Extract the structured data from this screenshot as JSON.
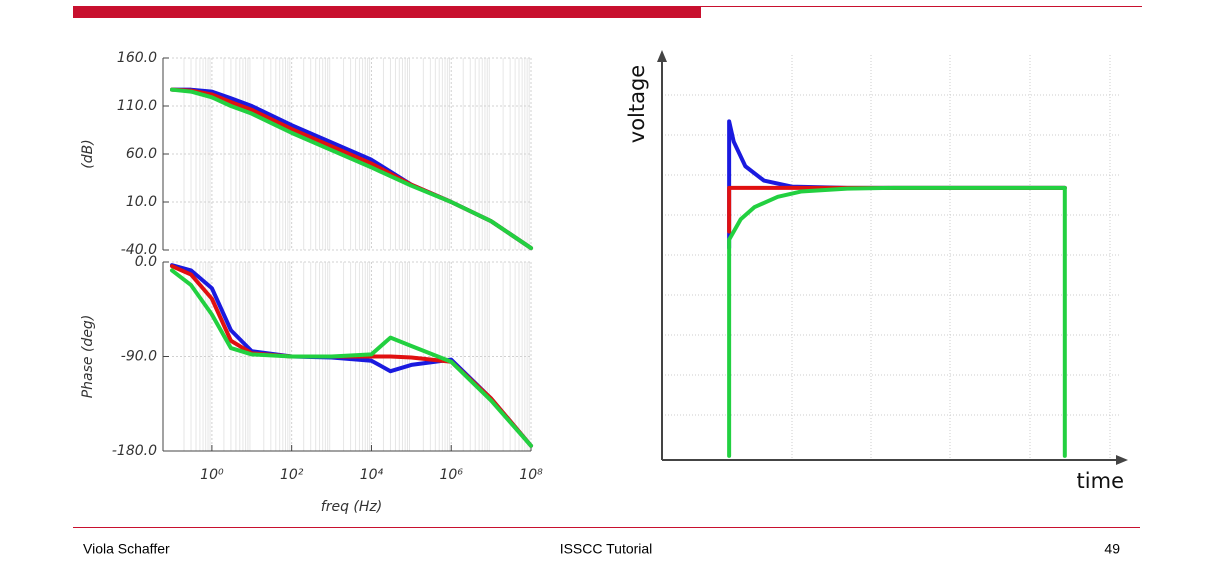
{
  "footer": {
    "author": "Viola Schaffer",
    "event": "ISSCC Tutorial",
    "page": "49"
  },
  "chart_data": [
    {
      "type": "line",
      "ylabel": "(dB)",
      "xscale": "log",
      "xlim": [
        0.1,
        100000000
      ],
      "ylim": [
        -40,
        160
      ],
      "yticks": [
        {
          "value": 160,
          "label": "160.0"
        },
        {
          "value": 110,
          "label": "110.0"
        },
        {
          "value": 60,
          "label": "60.0"
        },
        {
          "value": 10,
          "label": "10.0"
        },
        {
          "value": -40,
          "label": "-40.0"
        }
      ],
      "grid": true,
      "x": [
        0.1,
        0.3,
        1,
        3,
        10,
        100,
        1000,
        10000,
        100000,
        1000000,
        10000000,
        100000000
      ],
      "series": [
        {
          "color": "#1a1adf",
          "values": [
            127,
            127,
            125,
            118,
            110,
            90,
            72,
            54,
            28,
            10,
            -10,
            -38
          ]
        },
        {
          "color": "#e01010",
          "values": [
            127,
            126,
            122,
            114,
            106,
            86,
            68,
            50,
            28,
            10,
            -10,
            -38
          ]
        },
        {
          "color": "#22d040",
          "values": [
            127,
            125,
            119,
            110,
            102,
            82,
            64,
            46,
            27,
            10,
            -10,
            -38
          ]
        }
      ]
    },
    {
      "type": "line",
      "ylabel": "Phase (deg)",
      "xlabel": "freq (Hz)",
      "xscale": "log",
      "xlim": [
        0.1,
        100000000
      ],
      "ylim": [
        -180,
        0
      ],
      "yticks": [
        {
          "value": 0,
          "label": "0.0"
        },
        {
          "value": -90,
          "label": "-90.0"
        },
        {
          "value": -180,
          "label": "-180.0"
        }
      ],
      "xticks": [
        {
          "value": 1,
          "label": "10⁰"
        },
        {
          "value": 100,
          "label": "10²"
        },
        {
          "value": 10000,
          "label": "10⁴"
        },
        {
          "value": 1000000,
          "label": "10⁶"
        },
        {
          "value": 100000000,
          "label": "10⁸"
        }
      ],
      "grid": true,
      "x": [
        0.1,
        0.3,
        1,
        3,
        10,
        100,
        1000,
        10000,
        30000,
        100000,
        1000000,
        10000000,
        100000000
      ],
      "series": [
        {
          "color": "#1a1adf",
          "values": [
            -3,
            -8,
            -25,
            -65,
            -85,
            -90,
            -91,
            -94,
            -104,
            -98,
            -93,
            -130,
            -175
          ]
        },
        {
          "color": "#e01010",
          "values": [
            -4,
            -12,
            -35,
            -75,
            -87,
            -90,
            -90,
            -90,
            -90,
            -91,
            -95,
            -130,
            -175
          ]
        },
        {
          "color": "#22d040",
          "values": [
            -8,
            -22,
            -50,
            -82,
            -88,
            -90,
            -90,
            -88,
            -72,
            -80,
            -95,
            -132,
            -175
          ]
        }
      ]
    },
    {
      "type": "line",
      "ylabel": "voltage",
      "xlabel": "time",
      "xlim": [
        0,
        10
      ],
      "ylim": [
        0,
        10
      ],
      "series": [
        {
          "color": "#1a1adf",
          "x": [
            1.45,
            1.45,
            1.55,
            1.8,
            2.2,
            2.8,
            4,
            8.7
          ],
          "values": [
            5.2,
            8.3,
            7.8,
            7.2,
            6.85,
            6.7,
            6.67,
            6.67
          ]
        },
        {
          "color": "#e01010",
          "x": [
            1.45,
            1.45,
            8.7
          ],
          "values": [
            5.6,
            6.67,
            6.67
          ]
        },
        {
          "color": "#22d040",
          "x": [
            1.45,
            1.45,
            1.7,
            2,
            2.5,
            3,
            4,
            5,
            8.7,
            8.7
          ],
          "values": [
            0.1,
            5.4,
            5.9,
            6.2,
            6.45,
            6.58,
            6.65,
            6.67,
            6.67,
            0.1
          ]
        }
      ]
    }
  ]
}
